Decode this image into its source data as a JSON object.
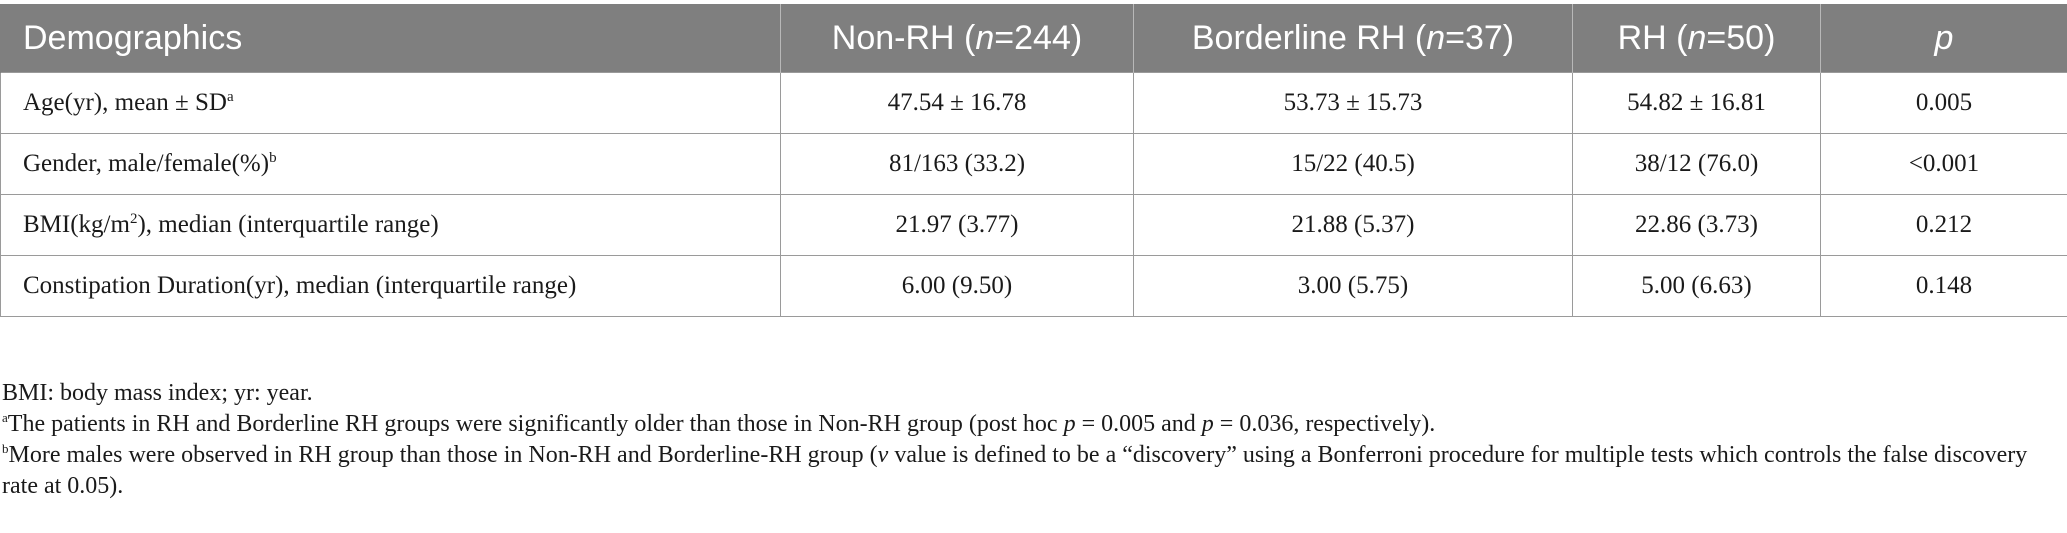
{
  "table": {
    "headers": [
      {
        "text": "Demographics"
      },
      {
        "pre": "Non-RH (",
        "italic": "n",
        "post": "=244)"
      },
      {
        "pre": "Borderline RH (",
        "italic": "n",
        "post": "=37)"
      },
      {
        "pre": "RH (",
        "italic": "n",
        "post": "=50)"
      },
      {
        "italic_only": "p"
      }
    ],
    "rows": [
      {
        "label_pre": "Age(yr), mean ± SD",
        "label_sup": "a",
        "label_post": "",
        "values": [
          "47.54 ± 16.78",
          "53.73 ± 15.73",
          "54.82 ± 16.81",
          "0.005"
        ]
      },
      {
        "label_pre": "Gender, male/female(%)",
        "label_sup": "b",
        "label_post": "",
        "values": [
          "81/163 (33.2)",
          "15/22 (40.5)",
          "38/12 (76.0)",
          "<0.001"
        ]
      },
      {
        "label_pre": "BMI(kg/m",
        "label_sup": "2",
        "label_post": "), median (interquartile range)",
        "values": [
          "21.97 (3.77)",
          "21.88 (5.37)",
          "22.86 (3.73)",
          "0.212"
        ]
      },
      {
        "label_pre": "Constipation Duration(yr), median (interquartile range)",
        "label_sup": "",
        "label_post": "",
        "values": [
          "6.00 (9.50)",
          "3.00 (5.75)",
          "5.00 (6.63)",
          "0.148"
        ]
      }
    ]
  },
  "notes": {
    "abbreviations": "BMI: body mass index; yr: year.",
    "note_a": {
      "sup": "a",
      "pre": "The patients in RH and Borderline RH groups were significantly older than those in Non-RH group (post hoc ",
      "p1": "p",
      "mid": " = 0.005 and ",
      "p2": "p",
      "post": " = 0.036, respectively)."
    },
    "note_b": {
      "sup": "b",
      "pre": "More males were observed in RH group than those in Non-RH and Borderline-RH group (",
      "v": "v",
      "post": " value is defined to be a “discovery” using a Bonferroni procedure for multiple tests which controls the false discovery rate at 0.05)."
    }
  }
}
